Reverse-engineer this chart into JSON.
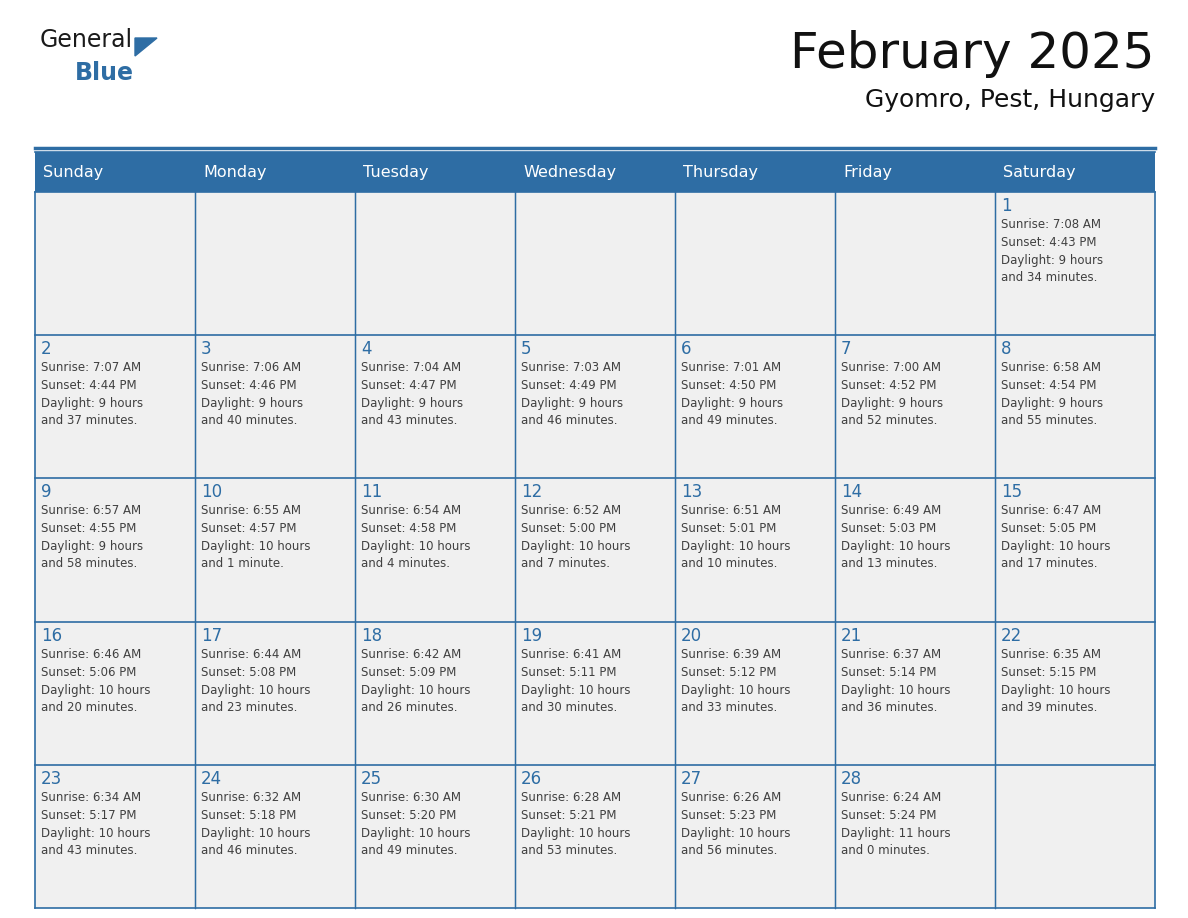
{
  "title": "February 2025",
  "subtitle": "Gyomro, Pest, Hungary",
  "days_of_week": [
    "Sunday",
    "Monday",
    "Tuesday",
    "Wednesday",
    "Thursday",
    "Friday",
    "Saturday"
  ],
  "header_bg": "#2E6DA4",
  "header_text": "#FFFFFF",
  "cell_bg": "#F0F0F0",
  "day_number_color": "#2E6DA4",
  "text_color": "#404040",
  "line_color": "#2E6DA4",
  "logo_general_color": "#1a1a1a",
  "logo_blue_color": "#2E6DA4",
  "weeks": [
    [
      {
        "day": null,
        "sunrise": null,
        "sunset": null,
        "daylight": null
      },
      {
        "day": null,
        "sunrise": null,
        "sunset": null,
        "daylight": null
      },
      {
        "day": null,
        "sunrise": null,
        "sunset": null,
        "daylight": null
      },
      {
        "day": null,
        "sunrise": null,
        "sunset": null,
        "daylight": null
      },
      {
        "day": null,
        "sunrise": null,
        "sunset": null,
        "daylight": null
      },
      {
        "day": null,
        "sunrise": null,
        "sunset": null,
        "daylight": null
      },
      {
        "day": 1,
        "sunrise": "7:08 AM",
        "sunset": "4:43 PM",
        "daylight": "9 hours\nand 34 minutes."
      }
    ],
    [
      {
        "day": 2,
        "sunrise": "7:07 AM",
        "sunset": "4:44 PM",
        "daylight": "9 hours\nand 37 minutes."
      },
      {
        "day": 3,
        "sunrise": "7:06 AM",
        "sunset": "4:46 PM",
        "daylight": "9 hours\nand 40 minutes."
      },
      {
        "day": 4,
        "sunrise": "7:04 AM",
        "sunset": "4:47 PM",
        "daylight": "9 hours\nand 43 minutes."
      },
      {
        "day": 5,
        "sunrise": "7:03 AM",
        "sunset": "4:49 PM",
        "daylight": "9 hours\nand 46 minutes."
      },
      {
        "day": 6,
        "sunrise": "7:01 AM",
        "sunset": "4:50 PM",
        "daylight": "9 hours\nand 49 minutes."
      },
      {
        "day": 7,
        "sunrise": "7:00 AM",
        "sunset": "4:52 PM",
        "daylight": "9 hours\nand 52 minutes."
      },
      {
        "day": 8,
        "sunrise": "6:58 AM",
        "sunset": "4:54 PM",
        "daylight": "9 hours\nand 55 minutes."
      }
    ],
    [
      {
        "day": 9,
        "sunrise": "6:57 AM",
        "sunset": "4:55 PM",
        "daylight": "9 hours\nand 58 minutes."
      },
      {
        "day": 10,
        "sunrise": "6:55 AM",
        "sunset": "4:57 PM",
        "daylight": "10 hours\nand 1 minute."
      },
      {
        "day": 11,
        "sunrise": "6:54 AM",
        "sunset": "4:58 PM",
        "daylight": "10 hours\nand 4 minutes."
      },
      {
        "day": 12,
        "sunrise": "6:52 AM",
        "sunset": "5:00 PM",
        "daylight": "10 hours\nand 7 minutes."
      },
      {
        "day": 13,
        "sunrise": "6:51 AM",
        "sunset": "5:01 PM",
        "daylight": "10 hours\nand 10 minutes."
      },
      {
        "day": 14,
        "sunrise": "6:49 AM",
        "sunset": "5:03 PM",
        "daylight": "10 hours\nand 13 minutes."
      },
      {
        "day": 15,
        "sunrise": "6:47 AM",
        "sunset": "5:05 PM",
        "daylight": "10 hours\nand 17 minutes."
      }
    ],
    [
      {
        "day": 16,
        "sunrise": "6:46 AM",
        "sunset": "5:06 PM",
        "daylight": "10 hours\nand 20 minutes."
      },
      {
        "day": 17,
        "sunrise": "6:44 AM",
        "sunset": "5:08 PM",
        "daylight": "10 hours\nand 23 minutes."
      },
      {
        "day": 18,
        "sunrise": "6:42 AM",
        "sunset": "5:09 PM",
        "daylight": "10 hours\nand 26 minutes."
      },
      {
        "day": 19,
        "sunrise": "6:41 AM",
        "sunset": "5:11 PM",
        "daylight": "10 hours\nand 30 minutes."
      },
      {
        "day": 20,
        "sunrise": "6:39 AM",
        "sunset": "5:12 PM",
        "daylight": "10 hours\nand 33 minutes."
      },
      {
        "day": 21,
        "sunrise": "6:37 AM",
        "sunset": "5:14 PM",
        "daylight": "10 hours\nand 36 minutes."
      },
      {
        "day": 22,
        "sunrise": "6:35 AM",
        "sunset": "5:15 PM",
        "daylight": "10 hours\nand 39 minutes."
      }
    ],
    [
      {
        "day": 23,
        "sunrise": "6:34 AM",
        "sunset": "5:17 PM",
        "daylight": "10 hours\nand 43 minutes."
      },
      {
        "day": 24,
        "sunrise": "6:32 AM",
        "sunset": "5:18 PM",
        "daylight": "10 hours\nand 46 minutes."
      },
      {
        "day": 25,
        "sunrise": "6:30 AM",
        "sunset": "5:20 PM",
        "daylight": "10 hours\nand 49 minutes."
      },
      {
        "day": 26,
        "sunrise": "6:28 AM",
        "sunset": "5:21 PM",
        "daylight": "10 hours\nand 53 minutes."
      },
      {
        "day": 27,
        "sunrise": "6:26 AM",
        "sunset": "5:23 PM",
        "daylight": "10 hours\nand 56 minutes."
      },
      {
        "day": 28,
        "sunrise": "6:24 AM",
        "sunset": "5:24 PM",
        "daylight": "11 hours\nand 0 minutes."
      },
      {
        "day": null,
        "sunrise": null,
        "sunset": null,
        "daylight": null
      }
    ]
  ]
}
